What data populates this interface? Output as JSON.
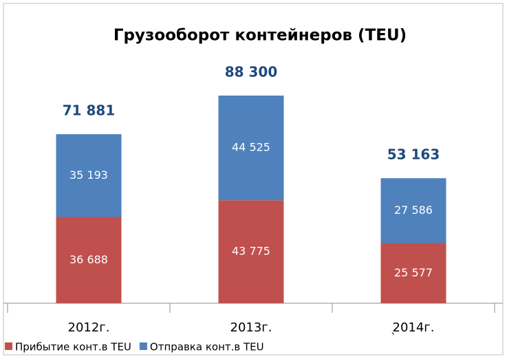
{
  "chart_data": {
    "type": "stacked_bar",
    "title": "Грузооборот контейнеров (TEU)",
    "categories": [
      "2012г.",
      "2013г.",
      "2014г."
    ],
    "series": [
      {
        "name": "Прибытие конт.в TEU",
        "color": "#c0504d",
        "values": [
          36688,
          43775,
          25577
        ],
        "value_labels": [
          "36 688",
          "43 775",
          "25 577"
        ]
      },
      {
        "name": "Отправка конт.в TEU",
        "color": "#4f81bd",
        "values": [
          35193,
          44525,
          27586
        ],
        "value_labels": [
          "35 193",
          "44 525",
          "27 586"
        ]
      }
    ],
    "totals": {
      "values": [
        71881,
        88300,
        53163
      ],
      "value_labels": [
        "71 881",
        "88 300",
        "53 163"
      ]
    },
    "annotation": "`",
    "legend": "bottom"
  }
}
